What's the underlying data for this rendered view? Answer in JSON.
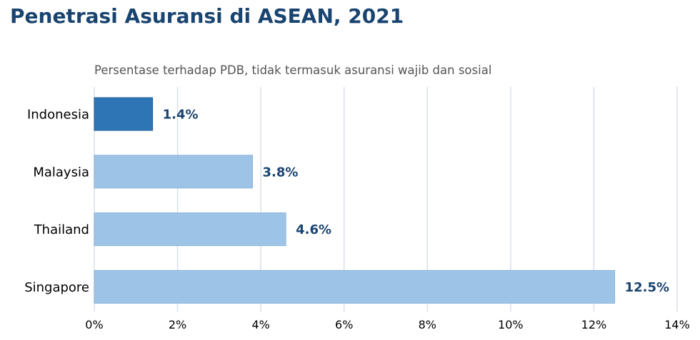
{
  "title": "Penetrasi Asuransi di ASEAN, 2021",
  "subtitle": "Persentase terhadap PDB, tidak termasuk asuransi wajib dan sosial",
  "colors": {
    "highlight": "#2e75b6",
    "highlight_edge": "#1f5d95",
    "default": "#9dc3e6",
    "default_edge": "#8ab3da",
    "grid": "#d9dee9",
    "title": "#1a4470"
  },
  "chart_data": {
    "type": "bar",
    "orientation": "horizontal",
    "title": "Penetrasi Asuransi di ASEAN, 2021",
    "subtitle": "Persentase terhadap PDB, tidak termasuk asuransi wajib dan sosial",
    "categories": [
      "Indonesia",
      "Malaysia",
      "Thailand",
      "Singapore"
    ],
    "values": [
      1.4,
      3.8,
      4.6,
      12.5
    ],
    "value_labels": [
      "1.4%",
      "3.8%",
      "4.6%",
      "12.5%"
    ],
    "highlighted": [
      "Indonesia"
    ],
    "xlim": [
      0,
      14
    ],
    "xticks": [
      0,
      2,
      4,
      6,
      8,
      10,
      12,
      14
    ],
    "xtick_labels": [
      "0%",
      "2%",
      "4%",
      "6%",
      "8%",
      "10%",
      "12%",
      "14%"
    ],
    "grid": "vertical"
  }
}
